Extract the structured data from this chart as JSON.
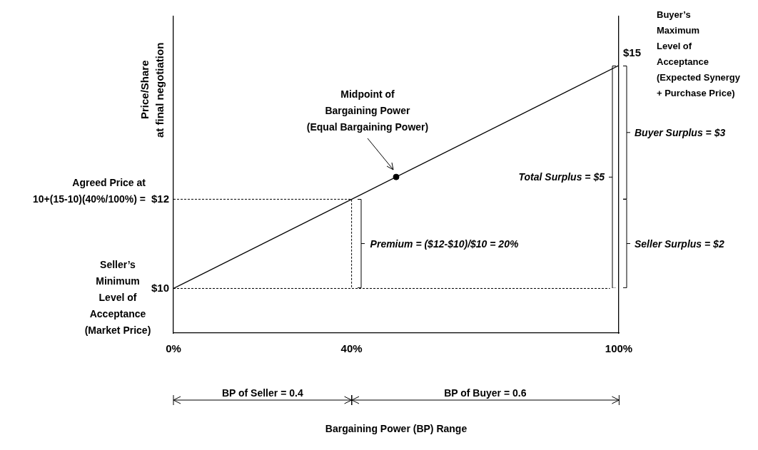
{
  "chart_data": {
    "type": "line",
    "ylabel": "Price/Share\nat final negotiation",
    "series": [
      {
        "x": [
          0,
          100
        ],
        "values": [
          10,
          15
        ],
        "color": "#000000"
      },
      {
        "x": [
          0,
          40,
          40
        ],
        "values": [
          12,
          12,
          10
        ],
        "color": "#000000",
        "line_style": "dashed"
      },
      {
        "x": [
          0,
          98
        ],
        "values": [
          10,
          10
        ],
        "color": "#000000",
        "line_style": "dashed"
      },
      {
        "type": "scatter",
        "x": [
          50
        ],
        "values": [
          12.5
        ],
        "color": "#000000"
      }
    ],
    "xlim": [
      0,
      100
    ],
    "xticks": [
      {
        "value": 0,
        "label": "0%"
      },
      {
        "value": 40,
        "label": "40%"
      },
      {
        "value": 100,
        "label": "100%"
      }
    ],
    "ylim": [
      9,
      16.1
    ],
    "yticks": [
      {
        "value": 10,
        "label": "$10"
      },
      {
        "value": 12,
        "label": "$12"
      }
    ],
    "annotations": [
      "Midpoint of\nBargaining Power\n(Equal Bargaining Power)",
      "Agreed Price at\n10+(15-10)(40%/100%) =",
      "Seller’s\nMinimum\nLevel of\nAcceptance\n(Market Price)",
      "Buyer’s\nMaximum\nLevel of\nAcceptance\n(Expected Synergy\n+ Purchase Price)",
      "Premium = ($12-$10)/$10 = 20%",
      "Total Surplus = $5",
      "Buyer Surplus = $3",
      "Seller Surplus = $2",
      "BP of Seller = 0.4",
      "BP of Buyer = 0.6",
      "$15",
      "Bargaining Power (BP) Range"
    ],
    "grid": false,
    "legend": false
  }
}
